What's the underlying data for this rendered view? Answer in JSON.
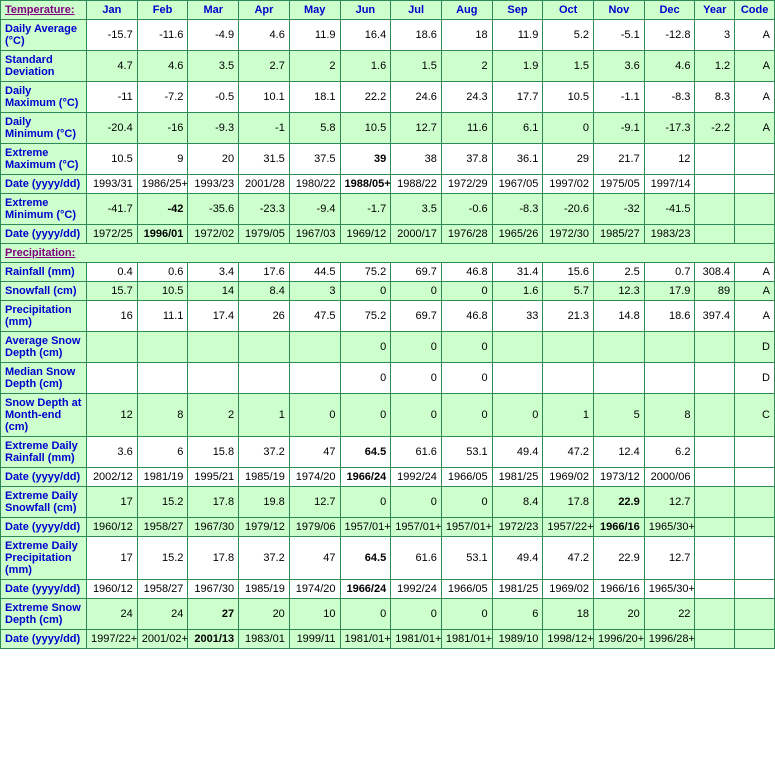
{
  "header": {
    "section_link": "Temperature:",
    "months": [
      "Jan",
      "Feb",
      "Mar",
      "Apr",
      "May",
      "Jun",
      "Jul",
      "Aug",
      "Sep",
      "Oct",
      "Nov",
      "Dec"
    ],
    "year": "Year",
    "code": "Code"
  },
  "temperature_rows": [
    {
      "id": "daily-avg",
      "label": "Daily Average (°C)",
      "shade": false,
      "bold": [],
      "cells": [
        "-15.7",
        "-11.6",
        "-4.9",
        "4.6",
        "11.9",
        "16.4",
        "18.6",
        "18",
        "11.9",
        "5.2",
        "-5.1",
        "-12.8",
        "3",
        "A"
      ]
    },
    {
      "id": "std-dev",
      "label": "Standard Deviation",
      "shade": true,
      "bold": [],
      "cells": [
        "4.7",
        "4.6",
        "3.5",
        "2.7",
        "2",
        "1.6",
        "1.5",
        "2",
        "1.9",
        "1.5",
        "3.6",
        "4.6",
        "1.2",
        "A"
      ]
    },
    {
      "id": "daily-max",
      "label": "Daily Maximum (°C)",
      "shade": false,
      "bold": [],
      "cells": [
        "-11",
        "-7.2",
        "-0.5",
        "10.1",
        "18.1",
        "22.2",
        "24.6",
        "24.3",
        "17.7",
        "10.5",
        "-1.1",
        "-8.3",
        "8.3",
        "A"
      ]
    },
    {
      "id": "daily-min",
      "label": "Daily Minimum (°C)",
      "shade": true,
      "bold": [],
      "cells": [
        "-20.4",
        "-16",
        "-9.3",
        "-1",
        "5.8",
        "10.5",
        "12.7",
        "11.6",
        "6.1",
        "0",
        "-9.1",
        "-17.3",
        "-2.2",
        "A"
      ]
    },
    {
      "id": "ext-max",
      "label": "Extreme Maximum (°C)",
      "shade": false,
      "bold": [
        5
      ],
      "cells": [
        "10.5",
        "9",
        "20",
        "31.5",
        "37.5",
        "39",
        "38",
        "37.8",
        "36.1",
        "29",
        "21.7",
        "12",
        "",
        ""
      ]
    },
    {
      "id": "ext-max-date",
      "label": "Date (yyyy/dd)",
      "shade": false,
      "bold": [
        5
      ],
      "cells": [
        "1993/31",
        "1986/25+",
        "1993/23",
        "2001/28",
        "1980/22",
        "1988/05+",
        "1988/22",
        "1972/29",
        "1967/05",
        "1997/02",
        "1975/05",
        "1997/14",
        "",
        ""
      ]
    },
    {
      "id": "ext-min",
      "label": "Extreme Minimum (°C)",
      "shade": true,
      "bold": [
        1
      ],
      "cells": [
        "-41.7",
        "-42",
        "-35.6",
        "-23.3",
        "-9.4",
        "-1.7",
        "3.5",
        "-0.6",
        "-8.3",
        "-20.6",
        "-32",
        "-41.5",
        "",
        ""
      ]
    },
    {
      "id": "ext-min-date",
      "label": "Date (yyyy/dd)",
      "shade": true,
      "bold": [
        1
      ],
      "cells": [
        "1972/25",
        "1996/01",
        "1972/02",
        "1979/05",
        "1967/03",
        "1969/12",
        "2000/17",
        "1976/28",
        "1965/26",
        "1972/30",
        "1985/27",
        "1983/23",
        "",
        ""
      ]
    }
  ],
  "precip_section": "Precipitation:",
  "precip_rows": [
    {
      "id": "rainfall",
      "label": "Rainfall (mm)",
      "shade": false,
      "bold": [],
      "cells": [
        "0.4",
        "0.6",
        "3.4",
        "17.6",
        "44.5",
        "75.2",
        "69.7",
        "46.8",
        "31.4",
        "15.6",
        "2.5",
        "0.7",
        "308.4",
        "A"
      ]
    },
    {
      "id": "snowfall",
      "label": "Snowfall (cm)",
      "shade": true,
      "bold": [],
      "cells": [
        "15.7",
        "10.5",
        "14",
        "8.4",
        "3",
        "0",
        "0",
        "0",
        "1.6",
        "5.7",
        "12.3",
        "17.9",
        "89",
        "A"
      ]
    },
    {
      "id": "precip",
      "label": "Precipitation (mm)",
      "shade": false,
      "bold": [],
      "cells": [
        "16",
        "11.1",
        "17.4",
        "26",
        "47.5",
        "75.2",
        "69.7",
        "46.8",
        "33",
        "21.3",
        "14.8",
        "18.6",
        "397.4",
        "A"
      ]
    },
    {
      "id": "avg-snow-depth",
      "label": "Average Snow Depth (cm)",
      "shade": true,
      "bold": [],
      "cells": [
        "",
        "",
        "",
        "",
        "",
        "0",
        "0",
        "0",
        "",
        "",
        "",
        "",
        "",
        "D"
      ]
    },
    {
      "id": "median-snow-depth",
      "label": "Median Snow Depth (cm)",
      "shade": false,
      "bold": [],
      "cells": [
        "",
        "",
        "",
        "",
        "",
        "0",
        "0",
        "0",
        "",
        "",
        "",
        "",
        "",
        "D"
      ]
    },
    {
      "id": "sd-month-end",
      "label": "Snow Depth at Month-end (cm)",
      "shade": true,
      "bold": [],
      "cells": [
        "12",
        "8",
        "2",
        "1",
        "0",
        "0",
        "0",
        "0",
        "0",
        "1",
        "5",
        "8",
        "",
        "C"
      ]
    },
    {
      "id": "ext-daily-rain",
      "label": "Extreme Daily Rainfall (mm)",
      "shade": false,
      "bold": [
        5
      ],
      "cells": [
        "3.6",
        "6",
        "15.8",
        "37.2",
        "47",
        "64.5",
        "61.6",
        "53.1",
        "49.4",
        "47.2",
        "12.4",
        "6.2",
        "",
        ""
      ]
    },
    {
      "id": "ext-daily-rain-date",
      "label": "Date (yyyy/dd)",
      "shade": false,
      "bold": [
        5
      ],
      "cells": [
        "2002/12",
        "1981/19",
        "1995/21",
        "1985/19",
        "1974/20",
        "1966/24",
        "1992/24",
        "1966/05",
        "1981/25",
        "1969/02",
        "1973/12",
        "2000/06",
        "",
        ""
      ]
    },
    {
      "id": "ext-daily-snow",
      "label": "Extreme Daily Snowfall (cm)",
      "shade": true,
      "bold": [
        10
      ],
      "cells": [
        "17",
        "15.2",
        "17.8",
        "19.8",
        "12.7",
        "0",
        "0",
        "0",
        "8.4",
        "17.8",
        "22.9",
        "12.7",
        "",
        ""
      ]
    },
    {
      "id": "ext-daily-snow-date",
      "label": "Date (yyyy/dd)",
      "shade": true,
      "bold": [
        10
      ],
      "cells": [
        "1960/12",
        "1958/27",
        "1967/30",
        "1979/12",
        "1979/06",
        "1957/01+",
        "1957/01+",
        "1957/01+",
        "1972/23",
        "1957/22+",
        "1966/16",
        "1965/30+",
        "",
        ""
      ]
    },
    {
      "id": "ext-daily-precip",
      "label": "Extreme Daily Precipitation (mm)",
      "shade": false,
      "bold": [
        5
      ],
      "cells": [
        "17",
        "15.2",
        "17.8",
        "37.2",
        "47",
        "64.5",
        "61.6",
        "53.1",
        "49.4",
        "47.2",
        "22.9",
        "12.7",
        "",
        ""
      ]
    },
    {
      "id": "ext-daily-precip-date",
      "label": "Date (yyyy/dd)",
      "shade": false,
      "bold": [
        5
      ],
      "cells": [
        "1960/12",
        "1958/27",
        "1967/30",
        "1985/19",
        "1974/20",
        "1966/24",
        "1992/24",
        "1966/05",
        "1981/25",
        "1969/02",
        "1966/16",
        "1965/30+",
        "",
        ""
      ]
    },
    {
      "id": "ext-snow-depth",
      "label": "Extreme Snow Depth (cm)",
      "shade": true,
      "bold": [
        2
      ],
      "cells": [
        "24",
        "24",
        "27",
        "20",
        "10",
        "0",
        "0",
        "0",
        "6",
        "18",
        "20",
        "22",
        "",
        ""
      ]
    },
    {
      "id": "ext-snow-depth-date",
      "label": "Date (yyyy/dd)",
      "shade": true,
      "bold": [
        2
      ],
      "cells": [
        "1997/22+",
        "2001/02+",
        "2001/13",
        "1983/01",
        "1999/11",
        "1981/01+",
        "1981/01+",
        "1981/01+",
        "1989/10",
        "1998/12+",
        "1996/20+",
        "1996/28+",
        "",
        ""
      ]
    }
  ]
}
